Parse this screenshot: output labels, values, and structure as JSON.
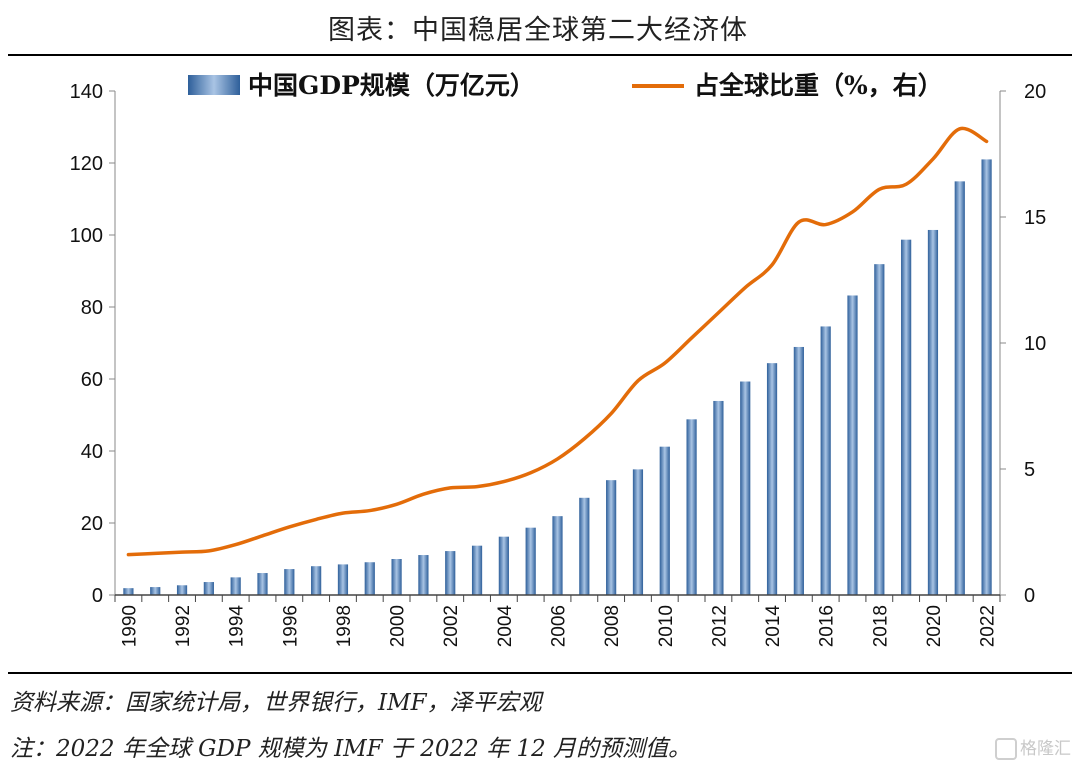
{
  "title": "图表：中国稳居全球第二大经济体",
  "source": "资料来源：国家统计局，世界银行，IMF，泽平宏观",
  "footnote": "注：2022 年全球 GDP 规模为 IMF 于 2022 年 12 月的预测值。",
  "watermark": "格隆汇",
  "colors": {
    "bar": "#4f81bd",
    "line": "#e36c09"
  },
  "chart_data": {
    "type": "bar+line",
    "title": "图表：中国稳居全球第二大经济体",
    "legend_position": "top",
    "grid": false,
    "x": [
      1990,
      1991,
      1992,
      1993,
      1994,
      1995,
      1996,
      1997,
      1998,
      1999,
      2000,
      2001,
      2002,
      2003,
      2004,
      2005,
      2006,
      2007,
      2008,
      2009,
      2010,
      2011,
      2012,
      2013,
      2014,
      2015,
      2016,
      2017,
      2018,
      2019,
      2020,
      2021,
      2022
    ],
    "x_tick_labels": [
      "1990",
      "1992",
      "1994",
      "1996",
      "1998",
      "2000",
      "2002",
      "2004",
      "2006",
      "2008",
      "2010",
      "2012",
      "2014",
      "2016",
      "2018",
      "2020",
      "2022"
    ],
    "y_left": {
      "ticks": [
        "0",
        "20",
        "40",
        "60",
        "80",
        "100",
        "120",
        "140"
      ],
      "ylim": [
        0,
        140
      ]
    },
    "y_right": {
      "ticks": [
        "0",
        "5",
        "10",
        "15",
        "20"
      ],
      "ylim": [
        0,
        20
      ]
    },
    "series": [
      {
        "name": "中国GDP规模（万亿元）",
        "type": "bar",
        "axis": "left",
        "values": [
          1.9,
          2.2,
          2.7,
          3.6,
          4.9,
          6.1,
          7.2,
          8.0,
          8.5,
          9.1,
          10.0,
          11.1,
          12.2,
          13.7,
          16.2,
          18.7,
          21.9,
          27.0,
          31.9,
          34.9,
          41.2,
          48.8,
          53.9,
          59.3,
          64.4,
          68.9,
          74.6,
          83.2,
          91.9,
          98.7,
          101.4,
          114.9,
          121.0
        ]
      },
      {
        "name": "占全球比重（%，右）",
        "type": "line",
        "axis": "right",
        "values": [
          1.6,
          1.65,
          1.7,
          1.75,
          2.0,
          2.35,
          2.7,
          3.0,
          3.25,
          3.35,
          3.6,
          4.0,
          4.25,
          4.3,
          4.5,
          4.85,
          5.4,
          6.2,
          7.2,
          8.5,
          9.2,
          10.2,
          11.2,
          12.2,
          13.1,
          14.8,
          14.7,
          15.2,
          16.1,
          16.3,
          17.3,
          18.5,
          18.0
        ]
      }
    ]
  }
}
